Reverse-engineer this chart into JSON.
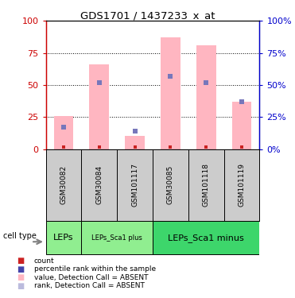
{
  "title": "GDS1701 / 1437233_x_at",
  "samples": [
    "GSM30082",
    "GSM30084",
    "GSM101117",
    "GSM30085",
    "GSM101118",
    "GSM101119"
  ],
  "value_absent": [
    26,
    66,
    10,
    87,
    81,
    37
  ],
  "rank_absent": [
    17,
    52,
    14,
    57,
    52,
    37
  ],
  "cell_types": [
    {
      "label": "LEPs",
      "start": 0,
      "end": 1,
      "color": "#90EE90",
      "font_size": 8
    },
    {
      "label": "LEPs_Sca1 plus",
      "start": 1,
      "end": 3,
      "color": "#90EE90",
      "font_size": 6
    },
    {
      "label": "LEPs_Sca1 minus",
      "start": 3,
      "end": 6,
      "color": "#3DD66B",
      "font_size": 8
    }
  ],
  "bar_color_absent": "#FFB6C1",
  "rank_color_absent": "#7777BB",
  "count_color": "#CC2222",
  "left_axis_color": "#CC0000",
  "right_axis_color": "#0000CC",
  "ylim": [
    0,
    100
  ],
  "yticks": [
    0,
    25,
    50,
    75,
    100
  ],
  "bg_samples": "#cccccc",
  "legend_items": [
    {
      "color": "#CC2222",
      "label": "count"
    },
    {
      "color": "#4444AA",
      "label": "percentile rank within the sample"
    },
    {
      "color": "#FFB6C1",
      "label": "value, Detection Call = ABSENT"
    },
    {
      "color": "#BBBBDD",
      "label": "rank, Detection Call = ABSENT"
    }
  ]
}
